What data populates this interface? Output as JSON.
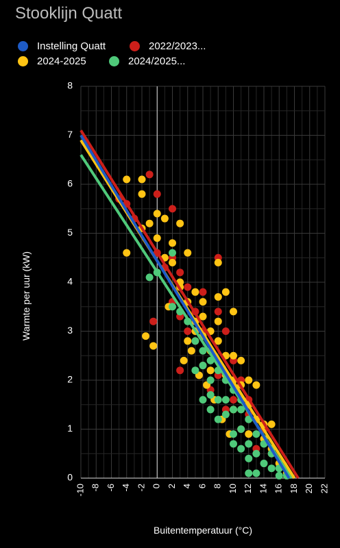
{
  "chart_data": {
    "type": "scatter",
    "title": "Stooklijn Quatt",
    "xlabel": "Buitentemperatuur (°C)",
    "ylabel": "Warmte per uur (kW)",
    "xlim": [
      -10,
      22
    ],
    "ylim": [
      0,
      8
    ],
    "x_ticks": [
      "-10",
      "-8",
      "-6",
      "-4",
      "-2",
      "0",
      "2",
      "4",
      "6",
      "8",
      "10",
      "12",
      "14",
      "16",
      "18",
      "20",
      "22"
    ],
    "y_ticks": [
      "0",
      "1",
      "2",
      "3",
      "4",
      "5",
      "6",
      "7",
      "8"
    ],
    "grid": true,
    "legend_position": "top-left",
    "series": [
      {
        "name": "Instelling Quatt",
        "color": "#1e5bc6",
        "line": [
          [
            -10,
            7.0
          ],
          [
            17.3,
            0.0
          ]
        ],
        "points": []
      },
      {
        "name": "2022/2023...",
        "color": "#cc1f1a",
        "line": [
          [
            -10,
            7.1
          ],
          [
            18.5,
            0.0
          ]
        ],
        "points": [
          [
            -5,
            5.7
          ],
          [
            -4,
            5.6
          ],
          [
            -3,
            5.3
          ],
          [
            -1,
            6.2
          ],
          [
            0,
            5.8
          ],
          [
            0,
            4.6
          ],
          [
            1,
            4.3
          ],
          [
            2,
            5.5
          ],
          [
            2,
            4.5
          ],
          [
            3,
            4.2
          ],
          [
            3,
            3.3
          ],
          [
            4,
            3.9
          ],
          [
            5,
            3.4
          ],
          [
            6,
            3.8
          ],
          [
            6,
            3.0
          ],
          [
            7,
            2.6
          ],
          [
            8,
            4.5
          ],
          [
            8,
            3.4
          ],
          [
            9,
            3.0
          ],
          [
            10,
            2.4
          ],
          [
            11,
            2.0
          ],
          [
            12,
            1.6
          ],
          [
            13,
            1.2
          ],
          [
            14,
            0.8
          ],
          [
            15,
            0.5
          ],
          [
            -0.5,
            3.2
          ],
          [
            3,
            2.2
          ],
          [
            5,
            2.8
          ],
          [
            7,
            1.8
          ],
          [
            9,
            1.4
          ],
          [
            11,
            1.0
          ],
          [
            13,
            0.6
          ],
          [
            4,
            3.0
          ],
          [
            6,
            2.3
          ],
          [
            8,
            2.1
          ],
          [
            10,
            1.6
          ],
          [
            12,
            1.3
          ],
          [
            2,
            3.6
          ],
          [
            14,
            1.0
          ],
          [
            16,
            0.3
          ]
        ]
      },
      {
        "name": "2024-2025",
        "color": "#ffc414",
        "line": [
          [
            -10,
            6.9
          ],
          [
            18.0,
            0.0
          ]
        ],
        "points": [
          [
            -4,
            6.1
          ],
          [
            -2,
            6.1
          ],
          [
            -2,
            5.8
          ],
          [
            -2,
            5.1
          ],
          [
            -1,
            5.2
          ],
          [
            0,
            5.4
          ],
          [
            0,
            4.9
          ],
          [
            1,
            5.3
          ],
          [
            1,
            4.5
          ],
          [
            2,
            4.8
          ],
          [
            2,
            4.4
          ],
          [
            3,
            5.2
          ],
          [
            3,
            4.0
          ],
          [
            -4,
            4.6
          ],
          [
            4,
            4.6
          ],
          [
            4,
            3.6
          ],
          [
            5,
            3.8
          ],
          [
            5,
            3.2
          ],
          [
            6,
            3.3
          ],
          [
            6,
            2.9
          ],
          [
            7,
            3.0
          ],
          [
            7,
            2.6
          ],
          [
            8,
            4.4
          ],
          [
            8,
            3.7
          ],
          [
            8,
            3.2
          ],
          [
            8,
            2.8
          ],
          [
            9,
            3.8
          ],
          [
            9,
            2.5
          ],
          [
            9,
            2.1
          ],
          [
            10,
            3.4
          ],
          [
            10,
            2.5
          ],
          [
            10,
            2.0
          ],
          [
            11,
            2.4
          ],
          [
            11,
            1.9
          ],
          [
            12,
            2.0
          ],
          [
            12,
            1.5
          ],
          [
            13,
            1.9
          ],
          [
            13,
            1.2
          ],
          [
            14,
            1.1
          ],
          [
            14,
            0.8
          ],
          [
            15,
            1.1
          ],
          [
            15,
            0.6
          ],
          [
            16,
            0.3
          ],
          [
            17,
            0.1
          ],
          [
            -1.5,
            2.9
          ],
          [
            -0.5,
            2.7
          ],
          [
            1.5,
            3.5
          ],
          [
            3.5,
            2.4
          ],
          [
            4.5,
            2.6
          ],
          [
            5.5,
            2.1
          ],
          [
            6.5,
            1.9
          ],
          [
            7.5,
            1.6
          ],
          [
            8.5,
            1.2
          ],
          [
            9.5,
            0.9
          ],
          [
            6,
            3.6
          ],
          [
            7,
            2.2
          ],
          [
            10,
            1.4
          ],
          [
            12,
            0.9
          ],
          [
            4,
            2.8
          ],
          [
            5,
            3.0
          ],
          [
            3,
            3.9
          ]
        ]
      },
      {
        "name": "2024/2025...",
        "color": "#4fc97a",
        "line": [
          [
            -10,
            6.6
          ],
          [
            17.6,
            0.0
          ]
        ],
        "points": [
          [
            2,
            4.6
          ],
          [
            -1,
            4.1
          ],
          [
            0,
            4.2
          ],
          [
            2,
            3.5
          ],
          [
            3,
            3.4
          ],
          [
            4,
            3.2
          ],
          [
            5,
            2.8
          ],
          [
            5,
            2.2
          ],
          [
            6,
            2.6
          ],
          [
            6,
            1.6
          ],
          [
            7,
            2.4
          ],
          [
            7,
            2.0
          ],
          [
            7,
            1.4
          ],
          [
            8,
            2.2
          ],
          [
            8,
            1.6
          ],
          [
            8,
            1.2
          ],
          [
            9,
            2.0
          ],
          [
            9,
            1.3
          ],
          [
            10,
            1.8
          ],
          [
            10,
            1.4
          ],
          [
            10,
            0.9
          ],
          [
            11,
            1.6
          ],
          [
            11,
            1.0
          ],
          [
            11,
            0.6
          ],
          [
            12,
            1.2
          ],
          [
            12,
            0.7
          ],
          [
            12,
            0.4
          ],
          [
            13,
            0.9
          ],
          [
            13,
            0.5
          ],
          [
            14,
            0.7
          ],
          [
            14,
            0.3
          ],
          [
            15,
            0.5
          ],
          [
            15,
            0.2
          ],
          [
            16,
            0.2
          ],
          [
            16,
            0.05
          ],
          [
            17,
            0.05
          ],
          [
            12,
            0.1
          ],
          [
            13,
            0.1
          ],
          [
            6,
            2.3
          ],
          [
            7,
            1.7
          ],
          [
            9,
            1.6
          ],
          [
            10,
            0.7
          ],
          [
            11,
            1.4
          ]
        ]
      }
    ]
  }
}
